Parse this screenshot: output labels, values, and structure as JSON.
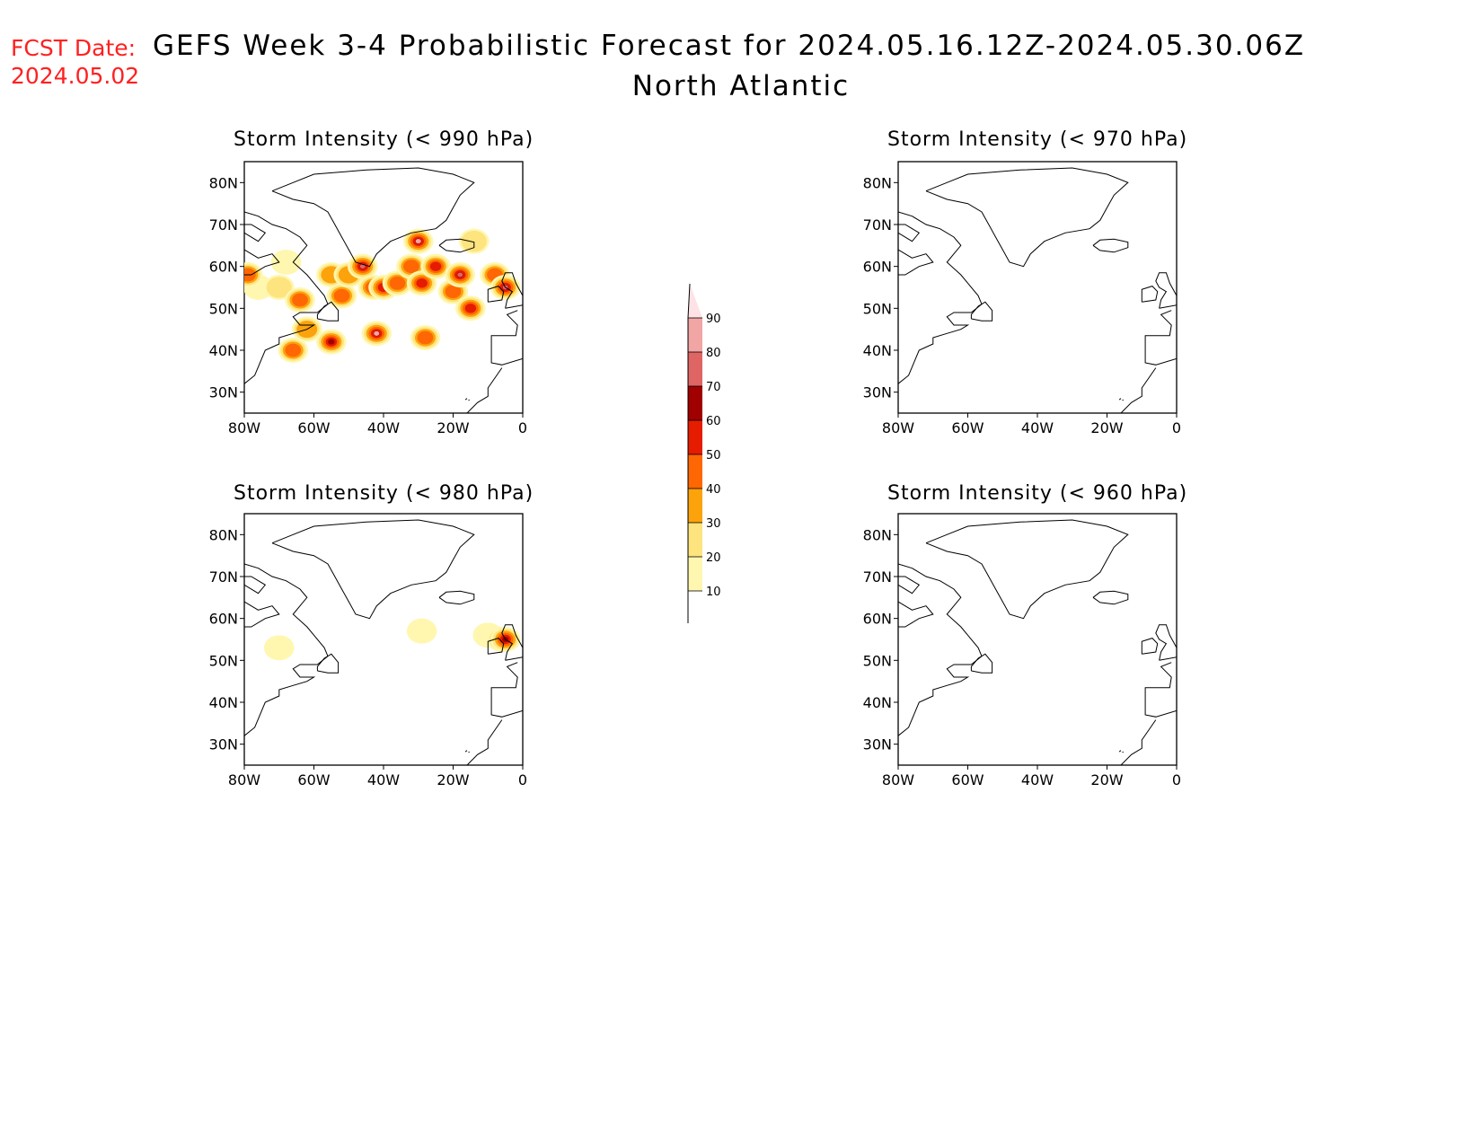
{
  "header": {
    "fcst_label": "FCST Date:",
    "fcst_date": "2024.05.02",
    "title": "GEFS Week 3-4 Probabilistic Forecast for 2024.05.16.12Z-2024.05.30.06Z",
    "subtitle": "North Atlantic"
  },
  "panels": [
    {
      "id": "p990",
      "title": "Storm Intensity (< 990 hPa)"
    },
    {
      "id": "p970",
      "title": "Storm Intensity (< 970 hPa)"
    },
    {
      "id": "p980",
      "title": "Storm Intensity (< 980 hPa)"
    },
    {
      "id": "p960",
      "title": "Storm Intensity (< 960 hPa)"
    }
  ],
  "axes": {
    "lat_labels": [
      "80N",
      "70N",
      "60N",
      "50N",
      "40N",
      "30N"
    ],
    "lat_values": [
      80,
      70,
      60,
      50,
      40,
      30
    ],
    "lon_labels": [
      "80W",
      "60W",
      "40W",
      "20W",
      "0"
    ],
    "lon_values": [
      -80,
      -60,
      -40,
      -20,
      0
    ],
    "lat_range": [
      25,
      85
    ],
    "lon_range": [
      -80,
      0
    ]
  },
  "colorbar": {
    "levels": [
      "10",
      "20",
      "30",
      "40",
      "50",
      "60",
      "70",
      "80",
      "90"
    ],
    "colors": [
      "#fff7b0",
      "#fde47f",
      "#fca30b",
      "#fe6703",
      "#e51c00",
      "#a00000",
      "#df6565",
      "#f2a5a5",
      "#fde2e6"
    ]
  },
  "chart_data": [
    {
      "type": "heatmap",
      "title": "Storm Intensity (< 990 hPa)",
      "units": "probability (%)",
      "blobs": [
        {
          "lon": -76,
          "lat": 55,
          "level": 10
        },
        {
          "lon": -70,
          "lat": 55,
          "level": 20
        },
        {
          "lon": -68,
          "lat": 61,
          "level": 10
        },
        {
          "lon": -64,
          "lat": 52,
          "level": 40
        },
        {
          "lon": -62,
          "lat": 45,
          "level": 30
        },
        {
          "lon": -55,
          "lat": 58,
          "level": 30
        },
        {
          "lon": -52,
          "lat": 53,
          "level": 40
        },
        {
          "lon": -50,
          "lat": 58,
          "level": 30
        },
        {
          "lon": -46,
          "lat": 60,
          "level": 70
        },
        {
          "lon": -43,
          "lat": 55,
          "level": 40
        },
        {
          "lon": -40,
          "lat": 55,
          "level": 50
        },
        {
          "lon": -42,
          "lat": 44,
          "level": 80
        },
        {
          "lon": -36,
          "lat": 56,
          "level": 40
        },
        {
          "lon": -32,
          "lat": 60,
          "level": 40
        },
        {
          "lon": -30,
          "lat": 66,
          "level": 80
        },
        {
          "lon": -29,
          "lat": 56,
          "level": 50
        },
        {
          "lon": -28,
          "lat": 43,
          "level": 40
        },
        {
          "lon": -25,
          "lat": 60,
          "level": 50
        },
        {
          "lon": -20,
          "lat": 54,
          "level": 40
        },
        {
          "lon": -18,
          "lat": 58,
          "level": 70
        },
        {
          "lon": -15,
          "lat": 50,
          "level": 50
        },
        {
          "lon": -14,
          "lat": 66,
          "level": 20
        },
        {
          "lon": -8,
          "lat": 58,
          "level": 40
        },
        {
          "lon": -5,
          "lat": 55,
          "level": 70
        },
        {
          "lon": -79,
          "lat": 58,
          "level": 40
        },
        {
          "lon": -66,
          "lat": 40,
          "level": 40
        },
        {
          "lon": -55,
          "lat": 42,
          "level": 60
        }
      ]
    },
    {
      "type": "heatmap",
      "title": "Storm Intensity (< 970 hPa)",
      "units": "probability (%)",
      "blobs": []
    },
    {
      "type": "heatmap",
      "title": "Storm Intensity (< 980 hPa)",
      "units": "probability (%)",
      "blobs": [
        {
          "lon": -70,
          "lat": 53,
          "level": 10
        },
        {
          "lon": -29,
          "lat": 57,
          "level": 10
        },
        {
          "lon": -10,
          "lat": 56,
          "level": 10
        },
        {
          "lon": -6,
          "lat": 55,
          "level": 40
        },
        {
          "lon": -5,
          "lat": 55,
          "level": 60
        }
      ]
    },
    {
      "type": "heatmap",
      "title": "Storm Intensity (< 960 hPa)",
      "units": "probability (%)",
      "blobs": []
    }
  ]
}
